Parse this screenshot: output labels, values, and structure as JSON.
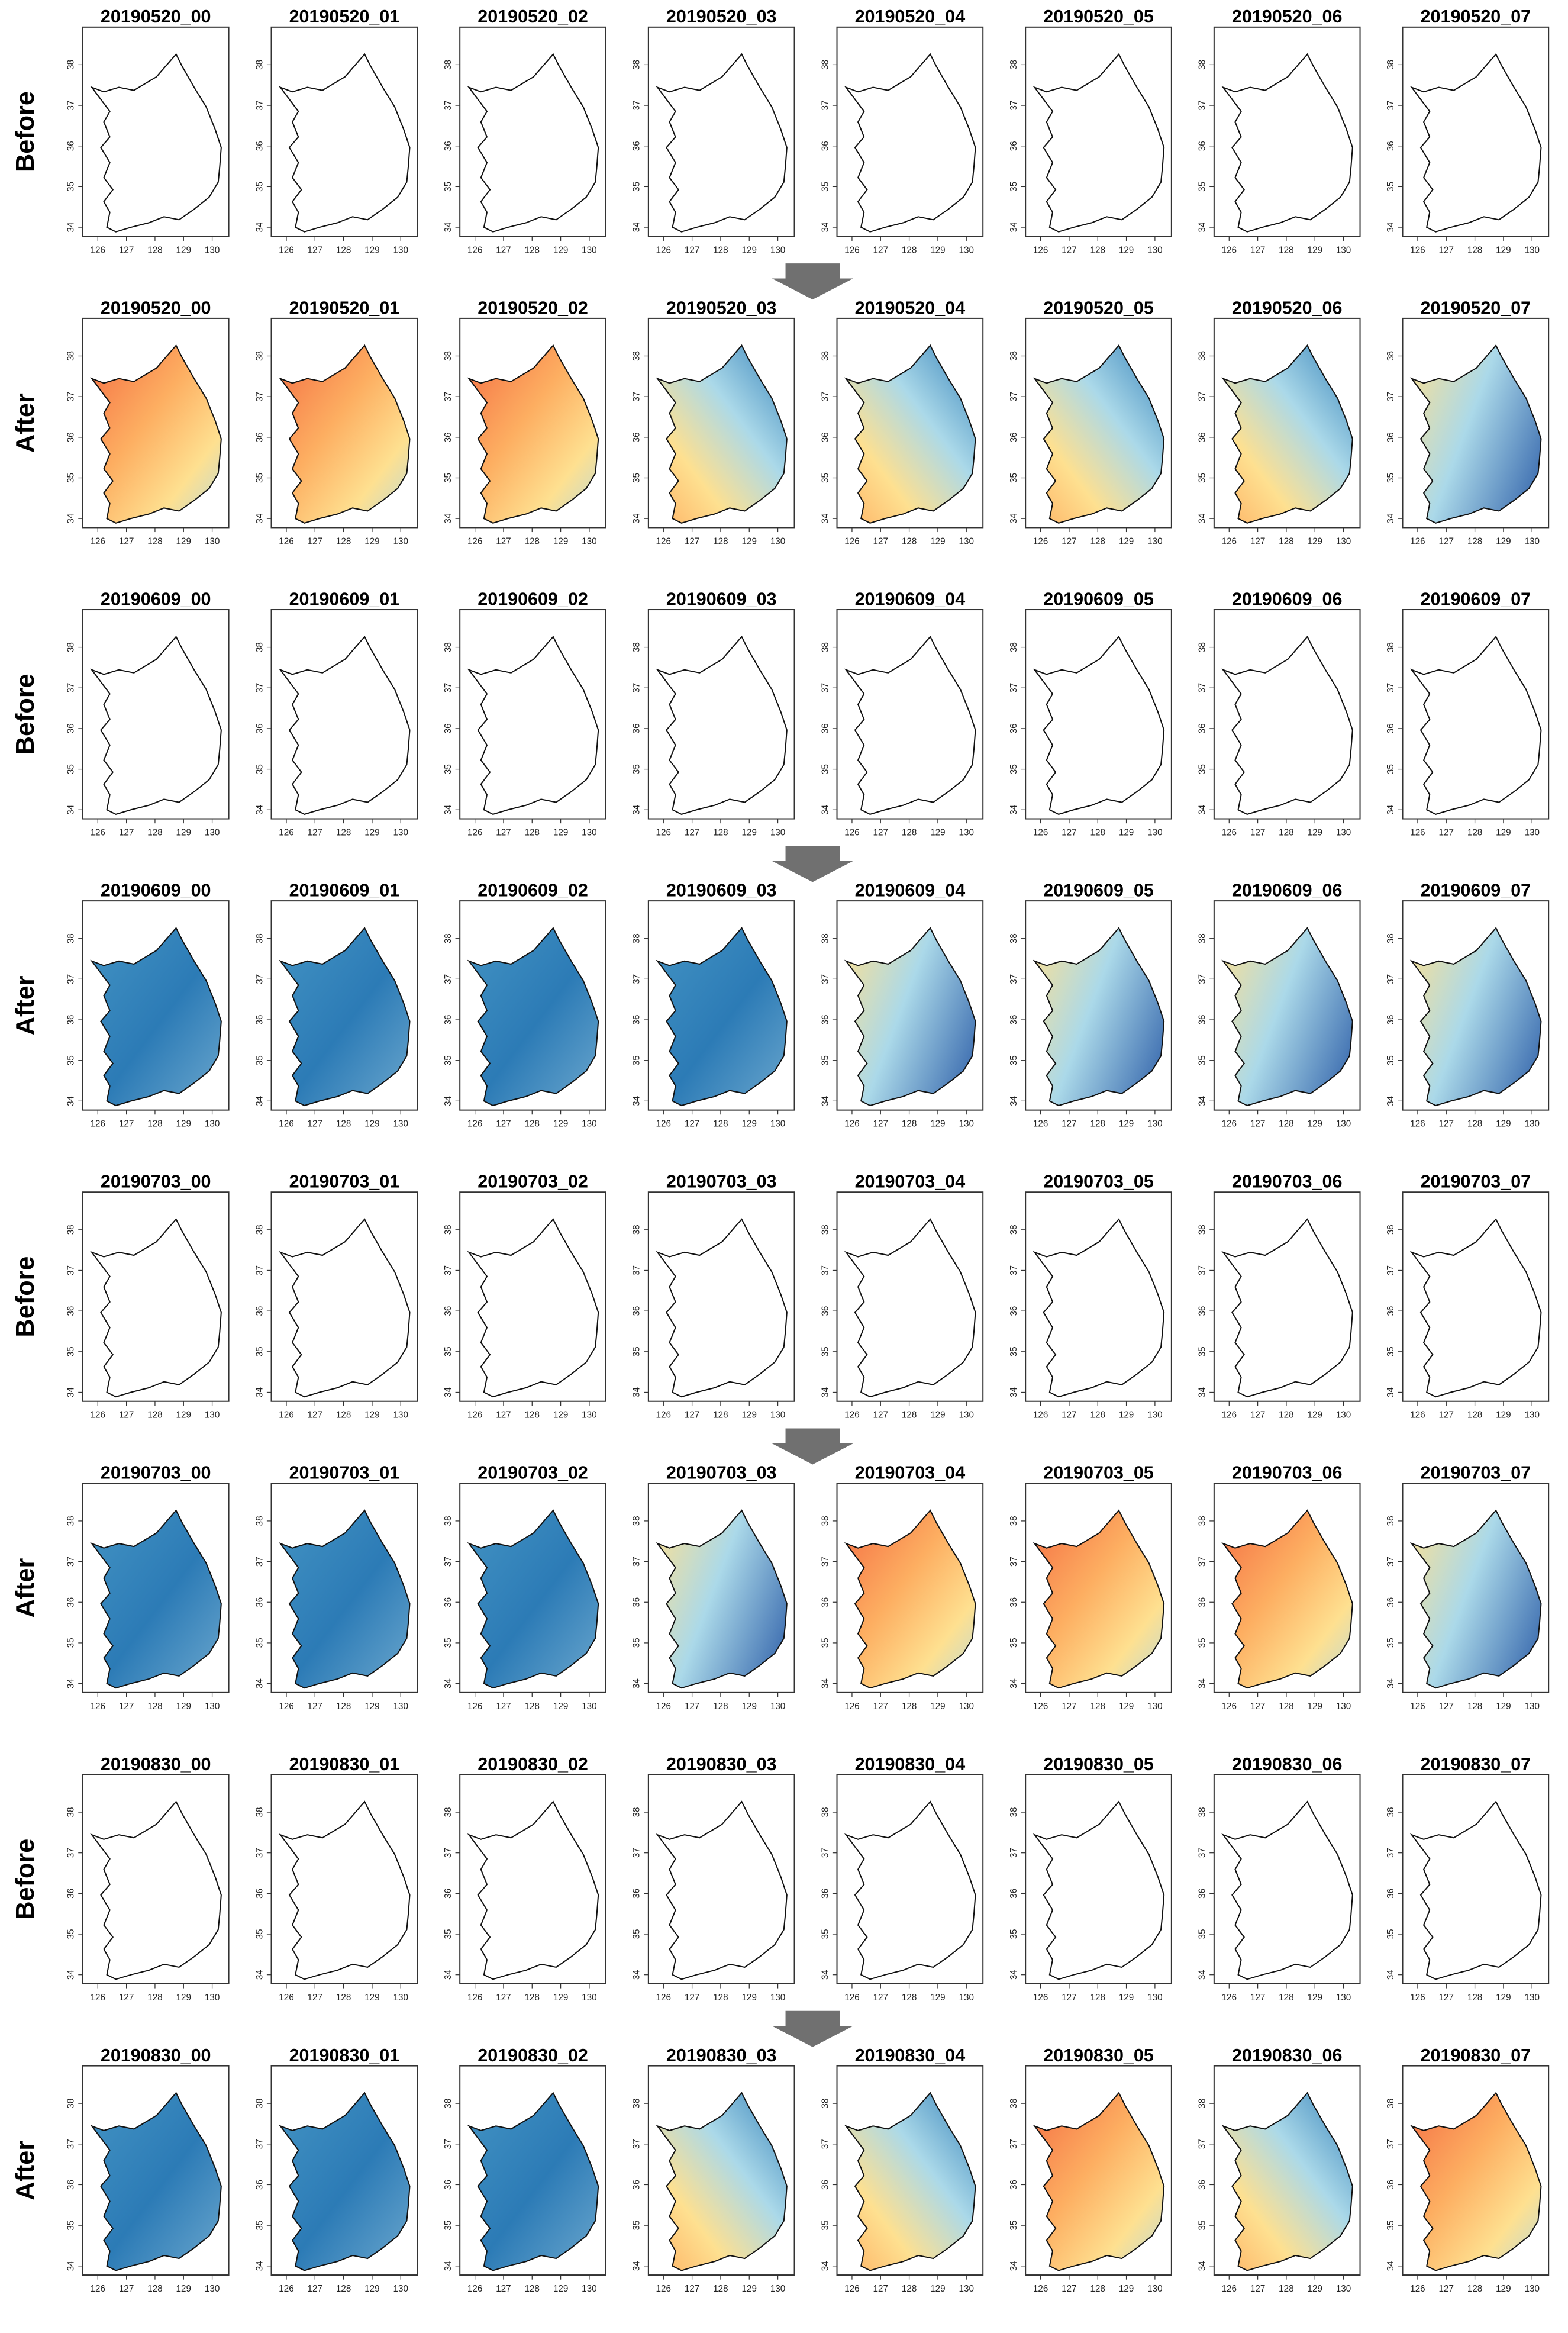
{
  "rows": [
    {
      "label": "Before",
      "panels": [
        "20190520_00",
        "20190520_01",
        "20190520_02",
        "20190520_03",
        "20190520_04",
        "20190520_05",
        "20190520_06",
        "20190520_07"
      ]
    },
    {
      "label": "After",
      "panels": [
        "20190520_00",
        "20190520_01",
        "20190520_02",
        "20190520_03",
        "20190520_04",
        "20190520_05",
        "20190520_06",
        "20190520_07"
      ]
    },
    {
      "label": "Before",
      "panels": [
        "20190609_00",
        "20190609_01",
        "20190609_02",
        "20190609_03",
        "20190609_04",
        "20190609_05",
        "20190609_06",
        "20190609_07"
      ]
    },
    {
      "label": "After",
      "panels": [
        "20190609_00",
        "20190609_01",
        "20190609_02",
        "20190609_03",
        "20190609_04",
        "20190609_05",
        "20190609_06",
        "20190609_07"
      ]
    },
    {
      "label": "Before",
      "panels": [
        "20190703_00",
        "20190703_01",
        "20190703_02",
        "20190703_03",
        "20190703_04",
        "20190703_05",
        "20190703_06",
        "20190703_07"
      ]
    },
    {
      "label": "After",
      "panels": [
        "20190703_00",
        "20190703_01",
        "20190703_02",
        "20190703_03",
        "20190703_04",
        "20190703_05",
        "20190703_06",
        "20190703_07"
      ]
    },
    {
      "label": "Before",
      "panels": [
        "20190830_00",
        "20190830_01",
        "20190830_02",
        "20190830_03",
        "20190830_04",
        "20190830_05",
        "20190830_06",
        "20190830_07"
      ]
    },
    {
      "label": "After",
      "panels": [
        "20190830_00",
        "20190830_01",
        "20190830_02",
        "20190830_03",
        "20190830_04",
        "20190830_05",
        "20190830_06",
        "20190830_07"
      ]
    }
  ],
  "x_ticks": [
    "126",
    "127",
    "128",
    "129",
    "130"
  ],
  "y_ticks": [
    "34",
    "35",
    "36",
    "37",
    "38"
  ]
}
